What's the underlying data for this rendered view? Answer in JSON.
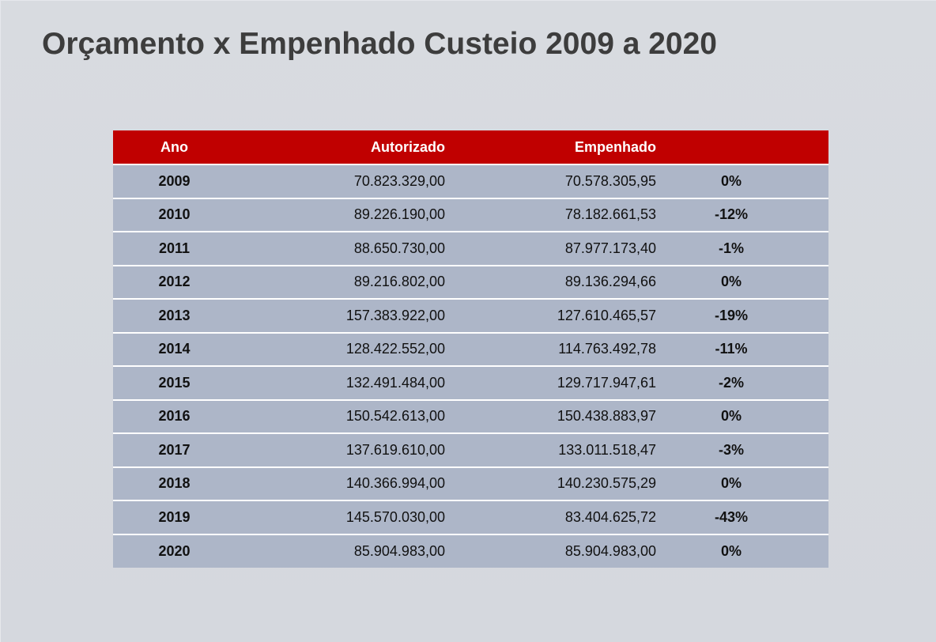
{
  "slide": {
    "title": "Orçamento x Empenhado Custeio 2009 a 2020"
  },
  "table": {
    "headers": {
      "year": "Ano",
      "authorized": "Autorizado",
      "committed": "Empenhado",
      "pct": ""
    },
    "rows": [
      {
        "year": "2009",
        "authorized": "70.823.329,00",
        "committed": "70.578.305,95",
        "pct": "0%"
      },
      {
        "year": "2010",
        "authorized": "89.226.190,00",
        "committed": "78.182.661,53",
        "pct": "-12%"
      },
      {
        "year": "2011",
        "authorized": "88.650.730,00",
        "committed": "87.977.173,40",
        "pct": "-1%"
      },
      {
        "year": "2012",
        "authorized": "89.216.802,00",
        "committed": "89.136.294,66",
        "pct": "0%"
      },
      {
        "year": "2013",
        "authorized": "157.383.922,00",
        "committed": "127.610.465,57",
        "pct": "-19%"
      },
      {
        "year": "2014",
        "authorized": "128.422.552,00",
        "committed": "114.763.492,78",
        "pct": "-11%"
      },
      {
        "year": "2015",
        "authorized": "132.491.484,00",
        "committed": "129.717.947,61",
        "pct": "-2%"
      },
      {
        "year": "2016",
        "authorized": "150.542.613,00",
        "committed": "150.438.883,97",
        "pct": "0%"
      },
      {
        "year": "2017",
        "authorized": "137.619.610,00",
        "committed": "133.011.518,47",
        "pct": "-3%"
      },
      {
        "year": "2018",
        "authorized": "140.366.994,00",
        "committed": "140.230.575,29",
        "pct": "0%"
      },
      {
        "year": "2019",
        "authorized": "145.570.030,00",
        "committed": "83.404.625,72",
        "pct": "-43%"
      },
      {
        "year": "2020",
        "authorized": "85.904.983,00",
        "committed": "85.904.983,00",
        "pct": "0%"
      }
    ]
  },
  "colors": {
    "header_bg": "#c00000",
    "row_bg": "#adb6c8",
    "slide_bg": "#d6d9df",
    "title_color": "#3d3d3d"
  }
}
